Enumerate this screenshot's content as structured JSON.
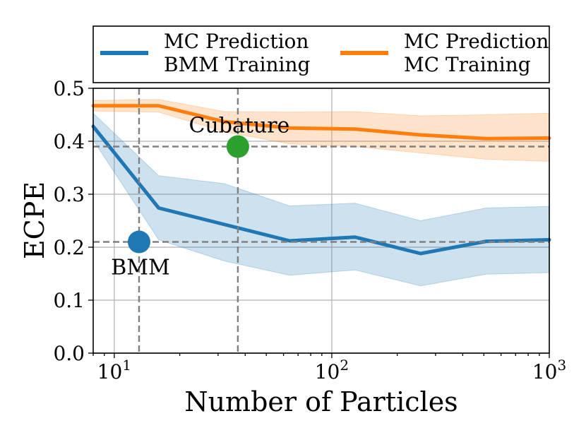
{
  "chart_data": {
    "type": "line",
    "xscale": "log",
    "xlim": [
      8,
      1000
    ],
    "ylim": [
      0.0,
      0.5
    ],
    "xlabel": "Number of Particles",
    "ylabel": "ECPE",
    "grid": true,
    "legend_position": "top (above axes)",
    "yticks": [
      "0.0",
      "0.1",
      "0.2",
      "0.3",
      "0.4",
      "0.5"
    ],
    "xticks": [
      {
        "value": 10,
        "base": "10",
        "exp": "1"
      },
      {
        "value": 100,
        "base": "10",
        "exp": "2"
      },
      {
        "value": 1000,
        "base": "10",
        "exp": "3"
      }
    ],
    "series": [
      {
        "name": "MC Prediction BMM Training",
        "legend_lines": [
          "MC Prediction",
          "BMM Training"
        ],
        "color": "#1f77b4",
        "band_color": "#1f77b4",
        "x": [
          8,
          16,
          32,
          64,
          128,
          256,
          512,
          1000
        ],
        "values": [
          0.428,
          0.274,
          0.243,
          0.212,
          0.219,
          0.188,
          0.211,
          0.214
        ],
        "lower": [
          0.402,
          0.214,
          0.174,
          0.147,
          0.157,
          0.127,
          0.149,
          0.152
        ],
        "upper": [
          0.453,
          0.335,
          0.32,
          0.278,
          0.283,
          0.25,
          0.274,
          0.277
        ]
      },
      {
        "name": "MC Prediction MC Training",
        "legend_lines": [
          "MC Prediction",
          "MC Training"
        ],
        "color": "#ff7f0e",
        "band_color": "#ff7f0e",
        "x": [
          8,
          16,
          32,
          64,
          128,
          256,
          512,
          1000
        ],
        "values": [
          0.467,
          0.467,
          0.437,
          0.425,
          0.423,
          0.412,
          0.405,
          0.406
        ],
        "lower": [
          0.457,
          0.455,
          0.418,
          0.395,
          0.39,
          0.378,
          0.366,
          0.362
        ],
        "upper": [
          0.477,
          0.479,
          0.456,
          0.455,
          0.456,
          0.448,
          0.45,
          0.453
        ]
      }
    ],
    "reference_points": [
      {
        "label": "BMM",
        "x": 13,
        "y": 0.21,
        "color": "#1f77b4",
        "label_side": "below"
      },
      {
        "label": "Cubature",
        "x": 37,
        "y": 0.39,
        "color": "#2ca02c",
        "label_side": "above"
      }
    ]
  }
}
